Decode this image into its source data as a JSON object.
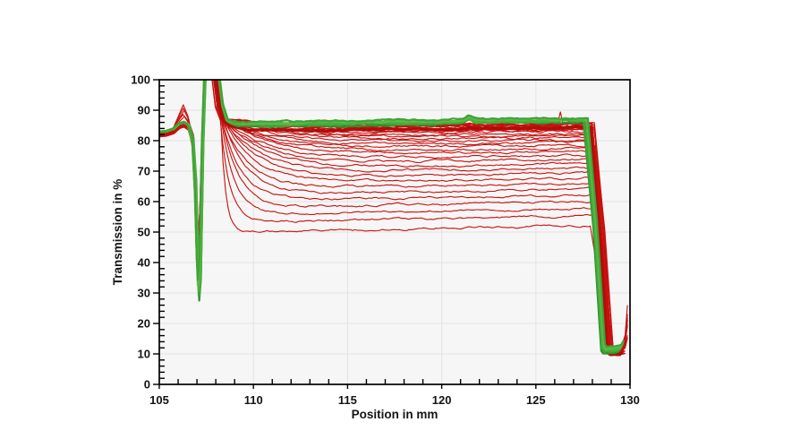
{
  "chart_data": {
    "type": "line",
    "title": "",
    "xlabel": "Position in mm",
    "ylabel": "Transmission in %",
    "xlim": [
      105,
      130
    ],
    "ylim": [
      0,
      100
    ],
    "x_major_step": 5,
    "x_minor_step": 1,
    "y_major_step": 10,
    "y_minor_step": 2,
    "grid": true,
    "legend": "none",
    "x_tick_labels": [
      "105",
      "110",
      "115",
      "120",
      "125",
      "130"
    ],
    "y_tick_labels": [
      "0",
      "10",
      "20",
      "30",
      "40",
      "50",
      "60",
      "70",
      "80",
      "90",
      "100"
    ],
    "colors": {
      "plot_background": "#f6f6f6",
      "outside_background": "#ffffff",
      "gridline": "#e3e3e3",
      "border": "#000000",
      "red": "#c8100e",
      "red_dense": "#b20c0c",
      "greens": [
        "#2f8f2c",
        "#3fa336",
        "#4bae3e",
        "#5aba4a",
        "#3fa336"
      ]
    },
    "shared_shape": {
      "start_level_pct": 83,
      "left_bump": {
        "x": 106.3,
        "band_peak_pct": 86,
        "overshoot_arcs_max_pct": 91.8
      },
      "dip": {
        "x": 107.08,
        "green_min_pct": 27.5,
        "red_min_range_pct": [
          34,
          50
        ]
      },
      "spike": {
        "x_flat_range": [
          107.42,
          108.1
        ],
        "peak_pct": 100,
        "clipped_at_top": true
      },
      "plateau_start_x": 108.5,
      "right_drop": {
        "green_knee_x": 127.65,
        "red_knee_x_range": [
          127.88,
          128.2
        ],
        "bottom_pct": 9.5,
        "bottom_x_range": [
          128.7,
          129.5
        ],
        "end_upturn_pct_range": [
          10,
          26
        ],
        "x_end": 130
      }
    },
    "series": {
      "green": {
        "count": 5,
        "plateau_start_pct": 84.5,
        "plateau_band_pct": [
          84.2,
          86.2
        ],
        "drift_pct_per_mm": 0.08,
        "small_bump_x": 121.45
      },
      "red": {
        "count": 34,
        "plateau_levels_pct": [
          84.5,
          84.5,
          84.5,
          84.4,
          84.3,
          84.2,
          84.0,
          83.8,
          83.5,
          83.2,
          82.8,
          82.4,
          81.9,
          81.3,
          80.7,
          79.9,
          79.1,
          78.2,
          77.3,
          76.2,
          75.1,
          73.8,
          72.5,
          71.0,
          69.5,
          67.8,
          66.1,
          64.2,
          62.3,
          60.2,
          58.0,
          55.6,
          53.2,
          49.9
        ],
        "drift_pct_per_mm_max": 0.12,
        "overshoot_arc_count": 6,
        "right_spikes_x": [
          126.28,
          126.88
        ]
      }
    }
  }
}
